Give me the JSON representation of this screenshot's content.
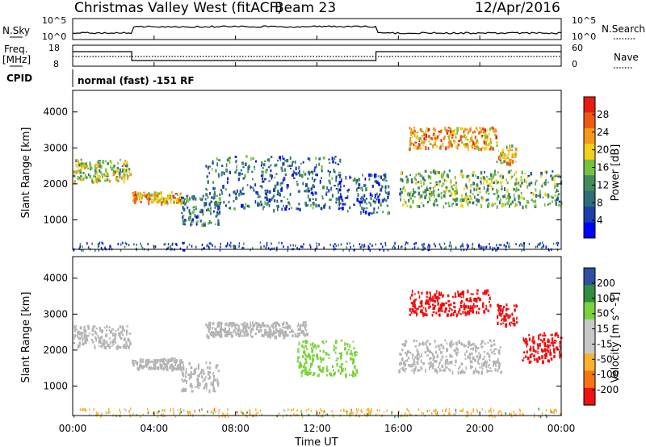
{
  "header": {
    "station": "Christmas Valley West (fitACF)",
    "beam": "Beam 23",
    "date": "12/Apr/2016"
  },
  "top_panels": {
    "nsky_label": "N.Sky",
    "nsky_ticks": [
      "10^5",
      "10^0"
    ],
    "nsearch_label": "N.Search",
    "nsearch_ticks": [
      "10^5",
      "10^0"
    ],
    "freq_label_1": "Freq.",
    "freq_label_2": "[MHz]",
    "freq_ticks": [
      "18",
      "8"
    ],
    "nave_label": "Nave",
    "nave_ticks": [
      "60",
      "0"
    ],
    "cpid_label": "CPID",
    "cpid_text": "normal (fast) -151 RF"
  },
  "colors": {
    "power_scale": [
      "#0000ff",
      "#1f3fa8",
      "#2e6e78",
      "#3f8c5e",
      "#76c043",
      "#f2d11b",
      "#f59a18",
      "#ee5a12",
      "#e81b12"
    ],
    "velocity_scale": [
      "#ee1111",
      "#f57515",
      "#f9b22e",
      "#c8c8c8",
      "#c8c8c8",
      "#7bd23c",
      "#2e8f3e",
      "#2f4fa3"
    ],
    "ground_scatter": "#b4b4b4"
  },
  "chart_data": [
    {
      "type": "heatmap",
      "name": "power-panel",
      "ylabel": "Slant Range [km]",
      "colorbar_label": "Power [dB]",
      "colorbar_ticks": [
        "4",
        "8",
        "12",
        "16",
        "20",
        "24",
        "28"
      ],
      "colorbar_range": [
        0,
        32
      ],
      "xlim_hours": [
        0,
        24
      ],
      "ylim_km": [
        180,
        4600
      ],
      "yticks": [
        "1000",
        "2000",
        "3000",
        "4000"
      ],
      "scatter_regions": [
        {
          "t": [
            0.0,
            2.8
          ],
          "r": [
            2100,
            2700
          ],
          "value": 17
        },
        {
          "t": [
            2.9,
            5.3
          ],
          "r": [
            1500,
            1800
          ],
          "value": 22
        },
        {
          "t": [
            5.3,
            7.2
          ],
          "r": [
            850,
            1700
          ],
          "value": 10
        },
        {
          "t": [
            6.5,
            13.2
          ],
          "r": [
            1300,
            2800
          ],
          "value": 9
        },
        {
          "t": [
            13.0,
            15.5
          ],
          "r": [
            1200,
            2300
          ],
          "value": 8
        },
        {
          "t": [
            16.5,
            20.8
          ],
          "r": [
            3000,
            3600
          ],
          "value": 23
        },
        {
          "t": [
            16.0,
            24.0
          ],
          "r": [
            1400,
            2400
          ],
          "value": 14
        },
        {
          "t": [
            20.8,
            21.8
          ],
          "r": [
            2600,
            3100
          ],
          "value": 20
        }
      ]
    },
    {
      "type": "heatmap",
      "name": "velocity-panel",
      "ylabel": "Slant Range [km]",
      "colorbar_label": "Velocity [m s^-1]",
      "colorbar_ticks": [
        "-200",
        "-100",
        "-50",
        "-15",
        "15",
        "50",
        "100",
        "200"
      ],
      "xlim_hours": [
        0,
        24
      ],
      "ylim_km": [
        180,
        4600
      ],
      "yticks": [
        "1000",
        "2000",
        "3000",
        "4000"
      ],
      "xticks": [
        "00:00",
        "04:00",
        "08:00",
        "12:00",
        "16:00",
        "20:00",
        "00:00"
      ],
      "xlabel": "Time UT",
      "scatter_regions": [
        {
          "t": [
            0.0,
            2.8
          ],
          "r": [
            2100,
            2700
          ],
          "value": "ground"
        },
        {
          "t": [
            2.9,
            5.3
          ],
          "r": [
            1500,
            1800
          ],
          "value": "ground"
        },
        {
          "t": [
            5.3,
            7.2
          ],
          "r": [
            850,
            1700
          ],
          "value": "ground"
        },
        {
          "t": [
            6.5,
            11.5
          ],
          "r": [
            2400,
            2800
          ],
          "value": "ground"
        },
        {
          "t": [
            11.0,
            14.0
          ],
          "r": [
            1300,
            2300
          ],
          "value": 40
        },
        {
          "t": [
            16.5,
            20.5
          ],
          "r": [
            3000,
            3700
          ],
          "value": -200
        },
        {
          "t": [
            20.8,
            21.8
          ],
          "r": [
            2700,
            3300
          ],
          "value": -200
        },
        {
          "t": [
            22.0,
            24.0
          ],
          "r": [
            1700,
            2500
          ],
          "value": -150
        },
        {
          "t": [
            16.0,
            21.0
          ],
          "r": [
            1400,
            2300
          ],
          "value": "ground"
        }
      ]
    }
  ]
}
